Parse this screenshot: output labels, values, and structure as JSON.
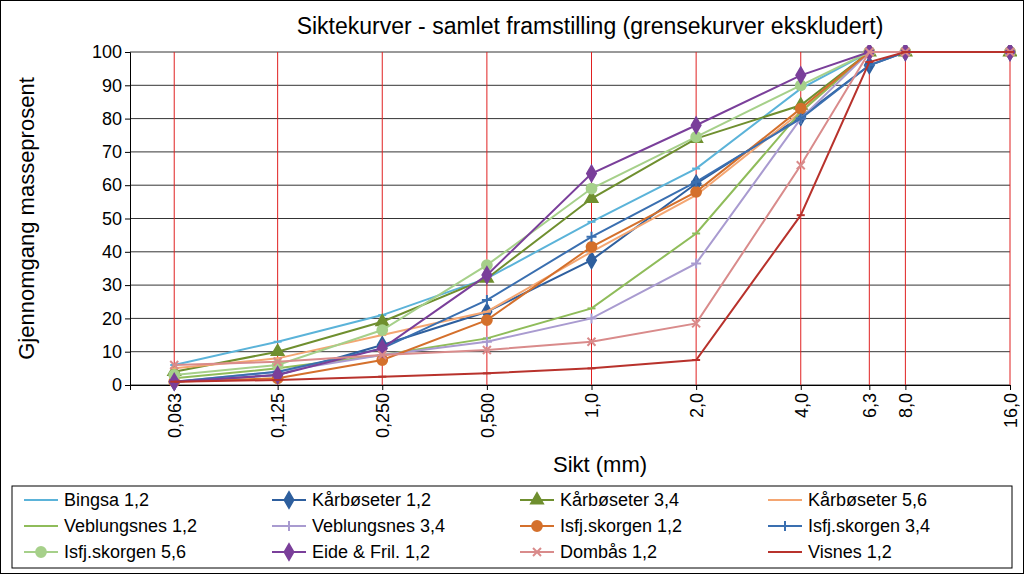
{
  "chart_data": {
    "type": "line",
    "title": "Siktekurver - samlet framstilling (grensekurver ekskludert)",
    "x_label": "Sikt (mm)",
    "y_label": "Gjennomgang masseprosent",
    "log": "x",
    "grid": true,
    "legend": "bottom",
    "x": [
      0.063,
      0.125,
      0.25,
      0.5,
      1,
      2,
      4,
      6.3,
      8,
      16
    ],
    "xlim": [
      0.047,
      16
    ],
    "xticks": [
      {
        "value": 0.063,
        "label": "0,063"
      },
      {
        "value": 0.125,
        "label": "0,125"
      },
      {
        "value": 0.25,
        "label": "0,250"
      },
      {
        "value": 0.5,
        "label": "0,500"
      },
      {
        "value": 1,
        "label": "1,0"
      },
      {
        "value": 2,
        "label": "2,0"
      },
      {
        "value": 4,
        "label": "4,0"
      },
      {
        "value": 6.3,
        "label": "6,3"
      },
      {
        "value": 8,
        "label": "8,0"
      },
      {
        "value": 16,
        "label": "16,0"
      }
    ],
    "ylim": [
      0,
      100
    ],
    "yticks": [
      0,
      10,
      20,
      30,
      40,
      50,
      60,
      70,
      80,
      90,
      100
    ],
    "series": [
      {
        "name": "Bingsa 1,2",
        "color": "#5bb3d9",
        "marker": "dash",
        "values": [
          6,
          13,
          21,
          32,
          49,
          65,
          89,
          100,
          100,
          100
        ]
      },
      {
        "name": "Kårbøseter  1,2",
        "color": "#2e5f9e",
        "marker": "diamond",
        "values": [
          1,
          3,
          12,
          22,
          37.5,
          60.5,
          80.5,
          96,
          100,
          100
        ]
      },
      {
        "name": "Kårbøseter 3,4",
        "color": "#6f8f2f",
        "marker": "triangle",
        "values": [
          4,
          10,
          19,
          32,
          56,
          74,
          84,
          100,
          100,
          100
        ]
      },
      {
        "name": "Kårbøseter 5,6",
        "color": "#f4a672",
        "marker": "dash",
        "values": [
          5,
          8,
          15,
          22,
          40,
          57,
          82,
          100,
          100,
          100
        ]
      },
      {
        "name": "Veblungsnes 1,2",
        "color": "#8fbc5a",
        "marker": "dash",
        "values": [
          2,
          5,
          9,
          14,
          23,
          45.5,
          82,
          100,
          100,
          100
        ]
      },
      {
        "name": "Veblungsnes 3,4",
        "color": "#a99bd0",
        "marker": "plus",
        "values": [
          1,
          4,
          9,
          13,
          20,
          36.5,
          80,
          100,
          100,
          100
        ]
      },
      {
        "name": "Isfj.skorgen 1,2",
        "color": "#d4702c",
        "marker": "circle",
        "values": [
          1,
          2,
          7.5,
          19.5,
          41.5,
          58,
          83,
          100,
          100,
          100
        ]
      },
      {
        "name": "Isfj.skorgen 3,4",
        "color": "#3a6fb0",
        "marker": "plus",
        "values": [
          1,
          4,
          11,
          25.5,
          44.5,
          61,
          80,
          96,
          100,
          100
        ]
      },
      {
        "name": "Isfj.skorgen 5,6",
        "color": "#a6d08a",
        "marker": "circle",
        "values": [
          3,
          6,
          16.5,
          36,
          59,
          74.5,
          90,
          100,
          100,
          100
        ]
      },
      {
        "name": "Eide & Fril. 1,2",
        "color": "#7a3f9a",
        "marker": "diamond",
        "values": [
          1,
          3,
          11,
          33,
          63.5,
          78,
          93,
          100,
          100,
          100
        ]
      },
      {
        "name": "Dombås  1,2",
        "color": "#d98b8b",
        "marker": "x",
        "values": [
          6,
          7,
          9,
          10.5,
          13,
          18.5,
          66,
          100,
          100,
          100
        ]
      },
      {
        "name": "Visnes 1,2",
        "color": "#b8322c",
        "marker": "dash",
        "values": [
          1,
          1.5,
          2.5,
          3.5,
          5,
          7.5,
          51,
          97,
          100,
          100
        ]
      }
    ]
  }
}
